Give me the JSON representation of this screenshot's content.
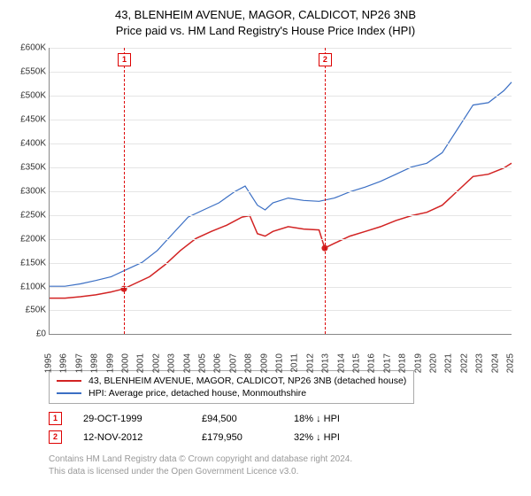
{
  "title_line1": "43, BLENHEIM AVENUE, MAGOR, CALDICOT, NP26 3NB",
  "title_line2": "Price paid vs. HM Land Registry's House Price Index (HPI)",
  "chart": {
    "type": "line",
    "ylabel_prefix": "£",
    "ylim": [
      0,
      600
    ],
    "ytick_step": 50,
    "yticks": [
      "£0",
      "£50K",
      "£100K",
      "£150K",
      "£200K",
      "£250K",
      "£300K",
      "£350K",
      "£400K",
      "£450K",
      "£500K",
      "£550K",
      "£600K"
    ],
    "xlim": [
      1995,
      2025
    ],
    "xticks": [
      1995,
      1996,
      1997,
      1998,
      1999,
      2000,
      2001,
      2002,
      2003,
      2004,
      2005,
      2006,
      2007,
      2008,
      2009,
      2010,
      2011,
      2012,
      2013,
      2014,
      2015,
      2016,
      2017,
      2018,
      2019,
      2020,
      2021,
      2022,
      2023,
      2024,
      2025
    ],
    "background_color": "#ffffff",
    "grid_color": "#e5e5e5",
    "series": [
      {
        "name": "property",
        "label": "43, BLENHEIM AVENUE, MAGOR, CALDICOT, NP26 3NB (detached house)",
        "color": "#d22323",
        "width": 1.5,
        "points": [
          [
            1995.0,
            75
          ],
          [
            1996.0,
            75
          ],
          [
            1997.0,
            78
          ],
          [
            1998.0,
            82
          ],
          [
            1999.0,
            88
          ],
          [
            1999.83,
            94.5
          ],
          [
            2000.5,
            105
          ],
          [
            2001.5,
            120
          ],
          [
            2002.5,
            145
          ],
          [
            2003.5,
            175
          ],
          [
            2004.5,
            200
          ],
          [
            2005.5,
            215
          ],
          [
            2006.5,
            228
          ],
          [
            2007.5,
            245
          ],
          [
            2008.0,
            248
          ],
          [
            2008.5,
            210
          ],
          [
            2009.0,
            205
          ],
          [
            2009.5,
            215
          ],
          [
            2010.5,
            225
          ],
          [
            2011.5,
            220
          ],
          [
            2012.5,
            218
          ],
          [
            2012.87,
            180
          ],
          [
            2013.5,
            190
          ],
          [
            2014.5,
            205
          ],
          [
            2015.5,
            215
          ],
          [
            2016.5,
            225
          ],
          [
            2017.5,
            238
          ],
          [
            2018.5,
            248
          ],
          [
            2019.5,
            255
          ],
          [
            2020.5,
            270
          ],
          [
            2021.5,
            300
          ],
          [
            2022.5,
            330
          ],
          [
            2023.5,
            335
          ],
          [
            2024.5,
            348
          ],
          [
            2025.0,
            358
          ]
        ],
        "sale_dots": [
          [
            1999.83,
            94.5
          ],
          [
            2012.87,
            180
          ]
        ]
      },
      {
        "name": "hpi",
        "label": "HPI: Average price, detached house, Monmouthshire",
        "color": "#3b6fc4",
        "width": 1.2,
        "points": [
          [
            1995.0,
            100
          ],
          [
            1996.0,
            100
          ],
          [
            1997.0,
            105
          ],
          [
            1998.0,
            112
          ],
          [
            1999.0,
            120
          ],
          [
            2000.0,
            135
          ],
          [
            2001.0,
            150
          ],
          [
            2002.0,
            175
          ],
          [
            2003.0,
            210
          ],
          [
            2004.0,
            245
          ],
          [
            2005.0,
            260
          ],
          [
            2006.0,
            275
          ],
          [
            2007.0,
            298
          ],
          [
            2007.7,
            310
          ],
          [
            2008.5,
            270
          ],
          [
            2009.0,
            260
          ],
          [
            2009.5,
            275
          ],
          [
            2010.5,
            285
          ],
          [
            2011.5,
            280
          ],
          [
            2012.5,
            278
          ],
          [
            2013.5,
            285
          ],
          [
            2014.5,
            298
          ],
          [
            2015.5,
            308
          ],
          [
            2016.5,
            320
          ],
          [
            2017.5,
            335
          ],
          [
            2018.5,
            350
          ],
          [
            2019.5,
            358
          ],
          [
            2020.5,
            380
          ],
          [
            2021.5,
            430
          ],
          [
            2022.5,
            480
          ],
          [
            2023.5,
            485
          ],
          [
            2024.5,
            510
          ],
          [
            2025.0,
            528
          ]
        ]
      }
    ],
    "event_lines": [
      {
        "id": "1",
        "x": 1999.83
      },
      {
        "id": "2",
        "x": 2012.87
      }
    ]
  },
  "legend": {
    "items": [
      {
        "color": "#d22323",
        "label": "43, BLENHEIM AVENUE, MAGOR, CALDICOT, NP26 3NB (detached house)"
      },
      {
        "color": "#3b6fc4",
        "label": "HPI: Average price, detached house, Monmouthshire"
      }
    ]
  },
  "transactions": [
    {
      "id": "1",
      "date": "29-OCT-1999",
      "price": "£94,500",
      "delta": "18% ↓ HPI"
    },
    {
      "id": "2",
      "date": "12-NOV-2012",
      "price": "£179,950",
      "delta": "32% ↓ HPI"
    }
  ],
  "footer_line1": "Contains HM Land Registry data © Crown copyright and database right 2024.",
  "footer_line2": "This data is licensed under the Open Government Licence v3.0."
}
